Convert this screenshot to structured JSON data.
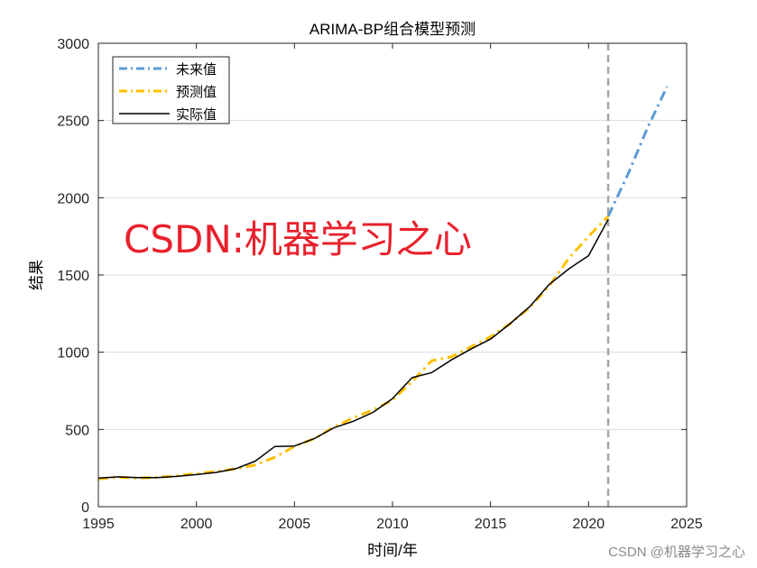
{
  "watermark_main": "CSDN:机器学习之心",
  "watermark_footer": "CSDN @机器学习之心",
  "colors": {
    "future": "#5b9bd5",
    "predicted": "#ffc000",
    "actual": "#000000",
    "divider": "#a6a6a6",
    "grid": "#dcdcdc",
    "watermark": "#e8212c"
  },
  "chart_data": {
    "type": "line",
    "title": "ARIMA-BP组合模型预测",
    "xlabel": "时间/年",
    "ylabel": "结果",
    "xlim": [
      1995,
      2025
    ],
    "ylim": [
      0,
      3000
    ],
    "xticks": [
      1995,
      2000,
      2005,
      2010,
      2015,
      2020,
      2025
    ],
    "yticks": [
      0,
      500,
      1000,
      1500,
      2000,
      2500,
      3000
    ],
    "grid": "horizontal",
    "legend_position": "top-left",
    "divider_x": 2021,
    "series": [
      {
        "name": "未来值",
        "style": "dash-dot",
        "color": "#5b9bd5",
        "x": [
          2021,
          2022,
          2023,
          2024
        ],
        "values": [
          1880,
          2150,
          2450,
          2720
        ]
      },
      {
        "name": "预测值",
        "style": "dash-dot",
        "color": "#ffc000",
        "x": [
          1995,
          1996,
          1997,
          1998,
          1999,
          2000,
          2001,
          2002,
          2003,
          2004,
          2005,
          2006,
          2007,
          2008,
          2009,
          2010,
          2011,
          2012,
          2013,
          2014,
          2015,
          2016,
          2017,
          2018,
          2019,
          2020,
          2021
        ],
        "values": [
          180,
          190,
          185,
          190,
          200,
          215,
          228,
          245,
          270,
          320,
          390,
          440,
          515,
          575,
          625,
          690,
          810,
          945,
          970,
          1035,
          1100,
          1185,
          1290,
          1430,
          1610,
          1750,
          1880
        ]
      },
      {
        "name": "实际值",
        "style": "solid",
        "color": "#000000",
        "x": [
          1995,
          1996,
          1997,
          1998,
          1999,
          2000,
          2001,
          2002,
          2003,
          2004,
          2005,
          2006,
          2007,
          2008,
          2009,
          2010,
          2011,
          2012,
          2013,
          2014,
          2015,
          2016,
          2017,
          2018,
          2019,
          2020,
          2021
        ],
        "values": [
          185,
          193,
          188,
          188,
          196,
          208,
          222,
          246,
          295,
          390,
          393,
          440,
          510,
          553,
          610,
          700,
          835,
          868,
          950,
          1020,
          1085,
          1185,
          1295,
          1440,
          1540,
          1625,
          1860
        ]
      }
    ]
  }
}
